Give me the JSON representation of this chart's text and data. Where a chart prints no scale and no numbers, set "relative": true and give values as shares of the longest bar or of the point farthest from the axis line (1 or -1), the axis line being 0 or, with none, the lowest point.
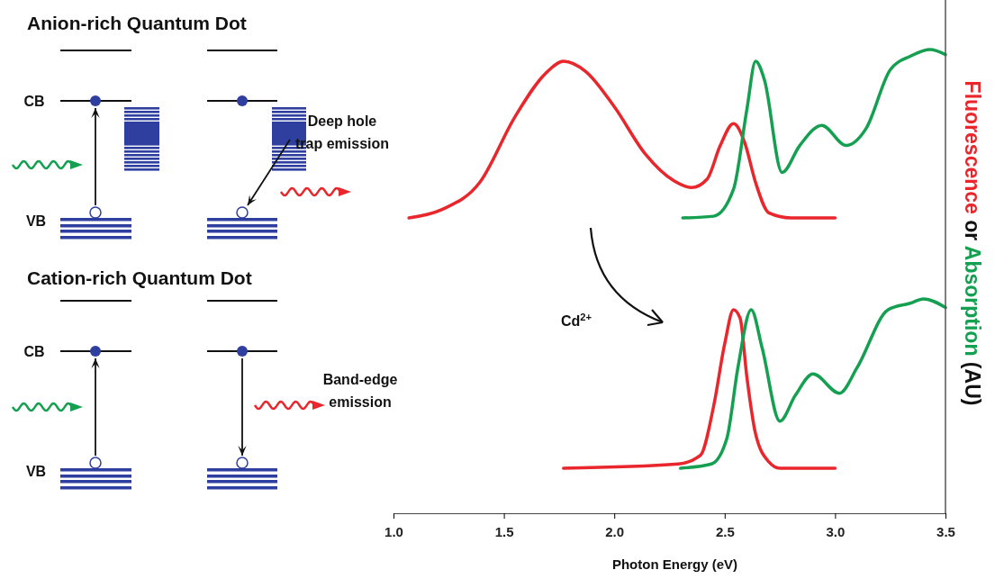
{
  "chart_data": [
    {
      "type": "line",
      "relative": true,
      "xlim": [
        1.0,
        3.5
      ],
      "tick_labels": false,
      "ylabel": "Fluorescence or Absorption (AU)",
      "annotations": [
        "Anion-rich Quantum Dot",
        "CB",
        "VB",
        "Deep hole trap emission"
      ],
      "series": [
        {
          "color": "#e8262b",
          "x": [
            1.07,
            1.22,
            1.39,
            1.55,
            1.69,
            1.77,
            1.87,
            2.0,
            2.14,
            2.27,
            2.35,
            2.42,
            2.48,
            2.54,
            2.59,
            2.64,
            2.7,
            2.8,
            3.0
          ],
          "values": [
            0,
            0.05,
            0.21,
            0.6,
            0.86,
            0.93,
            0.87,
            0.66,
            0.38,
            0.22,
            0.18,
            0.23,
            0.43,
            0.56,
            0.45,
            0.21,
            0.03,
            0,
            0
          ]
        },
        {
          "color": "#14a050",
          "x": [
            2.31,
            2.45,
            2.54,
            2.6,
            2.64,
            2.68,
            2.76,
            2.84,
            2.94,
            3.05,
            3.14,
            3.25,
            3.34,
            3.43,
            3.5
          ],
          "values": [
            0,
            0.01,
            0.17,
            0.64,
            0.93,
            0.82,
            0.27,
            0.43,
            0.55,
            0.43,
            0.53,
            0.88,
            0.96,
            1,
            0.97
          ]
        }
      ]
    },
    {
      "type": "line",
      "relative": true,
      "xlim": [
        1.0,
        3.5
      ],
      "xticks": [
        {
          "value": 1,
          "label": "1.0"
        },
        {
          "value": 1.5,
          "label": "1.5"
        },
        {
          "value": 2,
          "label": "2.0"
        },
        {
          "value": 2.5,
          "label": "2.5"
        },
        {
          "value": 3,
          "label": "3.0"
        },
        {
          "value": 3.5,
          "label": "3.5"
        }
      ],
      "tick_labels": "x",
      "xlabel": "Photon Energy (eV)",
      "annotations": [
        "Cation-rich Quantum Dot",
        "CB",
        "VB",
        "Band-edge emission",
        "Cd$^{2+}$"
      ],
      "series": [
        {
          "color": "#e8262b",
          "x": [
            1.77,
            2.29,
            2.39,
            2.45,
            2.5,
            2.54,
            2.57,
            2.6,
            2.64,
            2.7,
            2.75,
            3.0
          ],
          "values": [
            0.21,
            0.23,
            0.27,
            0.5,
            0.79,
            0.95,
            0.91,
            0.64,
            0.37,
            0.24,
            0.21,
            0.21
          ]
        },
        {
          "color": "#14a050",
          "x": [
            2.3,
            2.44,
            2.51,
            2.56,
            2.62,
            2.67,
            2.75,
            2.82,
            2.9,
            3.02,
            3.1,
            3.24,
            3.34,
            3.4,
            3.5
          ],
          "values": [
            0.21,
            0.23,
            0.35,
            0.68,
            0.95,
            0.77,
            0.43,
            0.55,
            0.65,
            0.56,
            0.68,
            0.95,
            0.98,
            1,
            0.96
          ]
        }
      ]
    }
  ]
}
